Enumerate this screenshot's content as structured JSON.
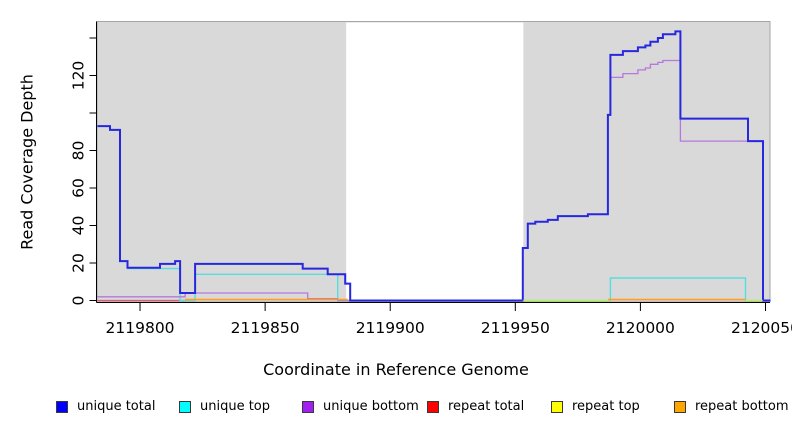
{
  "figure": {
    "xlabel": "Coordinate in Reference Genome",
    "ylabel": "Read Coverage Depth"
  },
  "axes": {
    "x_ticks": [
      {
        "value": 2119800,
        "label": "2119800"
      },
      {
        "value": 2119850,
        "label": "2119850"
      },
      {
        "value": 2119900,
        "label": "2119900"
      },
      {
        "value": 2119950,
        "label": "2119950"
      },
      {
        "value": 2120000,
        "label": "2120000"
      },
      {
        "value": 2120050,
        "label": "2120050"
      }
    ],
    "y_ticks": [
      {
        "value": 0,
        "label": "0"
      },
      {
        "value": 20,
        "label": "20"
      },
      {
        "value": 40,
        "label": "40"
      },
      {
        "value": 60,
        "label": "60"
      },
      {
        "value": 80,
        "label": "80"
      },
      {
        "value": 100,
        "label": ""
      },
      {
        "value": 120,
        "label": "120"
      },
      {
        "value": 140,
        "label": ""
      }
    ]
  },
  "legend": {
    "items": [
      {
        "label": "unique total",
        "color": "#0000ff"
      },
      {
        "label": "unique top",
        "color": "#00ffff"
      },
      {
        "label": "unique bottom",
        "color": "#a020f0"
      },
      {
        "label": "repeat total",
        "color": "#ff0000"
      },
      {
        "label": "repeat top",
        "color": "#ffff00"
      },
      {
        "label": "repeat bottom",
        "color": "#ffa500"
      }
    ]
  },
  "chart_data": {
    "type": "line",
    "subtype": "step",
    "title": "",
    "xlabel": "Coordinate in Reference Genome",
    "ylabel": "Read Coverage Depth",
    "xlim": [
      2119782.8,
      2120051.8
    ],
    "ylim": [
      -0.8,
      148.8
    ],
    "grid": false,
    "legend_position": "bottom",
    "background_bands": [
      {
        "from": 2119782.8,
        "to": 2120051.8,
        "color": "#d9d9d9",
        "border": "#a6a6a6"
      },
      {
        "from": 2119882.4,
        "to": 2119953.2,
        "color": "#ffffff",
        "border": "none"
      }
    ],
    "series": [
      {
        "name": "repeat total",
        "color": "#e85570",
        "width": 1.3,
        "opacity": 1,
        "segments": [
          [
            [
              2119783,
              0
            ],
            [
              2119818,
              0
            ]
          ]
        ]
      },
      {
        "name": "unique top",
        "color": "#55dde0",
        "width": 1.4,
        "opacity": 1,
        "segments": [
          [
            [
              2119783,
              93
            ],
            [
              2119788,
              91
            ],
            [
              2119792,
              21
            ],
            [
              2119795,
              17
            ],
            [
              2119816,
              0
            ],
            [
              2119822,
              14
            ],
            [
              2119879,
              0
            ],
            [
              2119988,
              12
            ],
            [
              2120042,
              0
            ],
            [
              2120052,
              0
            ]
          ]
        ]
      },
      {
        "name": "unique bottom",
        "color": "#b678dd",
        "width": 1.3,
        "opacity": 1,
        "segments": [
          [
            [
              2119783,
              2
            ],
            [
              2119818,
              4
            ],
            [
              2119867,
              1
            ],
            [
              2119879,
              0
            ],
            [
              2119953,
              28
            ],
            [
              2119955,
              41
            ],
            [
              2119958,
              42
            ],
            [
              2119963,
              43
            ],
            [
              2119967,
              45
            ],
            [
              2119979,
              46
            ],
            [
              2119987,
              99
            ],
            [
              2119988,
              119
            ],
            [
              2119993,
              121
            ],
            [
              2119999,
              123
            ],
            [
              2120002,
              124
            ],
            [
              2120004,
              126
            ],
            [
              2120007,
              127
            ],
            [
              2120009,
              128
            ],
            [
              2120016,
              85
            ],
            [
              2120049,
              0
            ],
            [
              2120052,
              0
            ]
          ]
        ]
      },
      {
        "name": "unique total",
        "color": "#2727e0",
        "width": 2,
        "opacity": 1,
        "segments": [
          [
            [
              2119783,
              93
            ],
            [
              2119788,
              91
            ],
            [
              2119792,
              21
            ],
            [
              2119795,
              17.5
            ],
            [
              2119808,
              19.5
            ],
            [
              2119814,
              21
            ],
            [
              2119816,
              4
            ],
            [
              2119822,
              19.5
            ],
            [
              2119865,
              17
            ],
            [
              2119875,
              14
            ],
            [
              2119882,
              9
            ],
            [
              2119884,
              0
            ],
            [
              2119953,
              28
            ],
            [
              2119955,
              41
            ],
            [
              2119958,
              42
            ],
            [
              2119963,
              43
            ],
            [
              2119967,
              45
            ],
            [
              2119979,
              46
            ],
            [
              2119987,
              99
            ],
            [
              2119988,
              131
            ],
            [
              2119993,
              133
            ],
            [
              2119999,
              135
            ],
            [
              2120002,
              136
            ],
            [
              2120004,
              138
            ],
            [
              2120007,
              140
            ],
            [
              2120009,
              142
            ],
            [
              2120014,
              143.5
            ],
            [
              2120016,
              97
            ],
            [
              2120043,
              85
            ],
            [
              2120049,
              0
            ],
            [
              2120052,
              0
            ]
          ]
        ]
      },
      {
        "name": "repeat top",
        "color": "#ffff00",
        "width": 1.5,
        "opacity": 0.6,
        "segments": [
          [
            [
              2119953,
              0
            ],
            [
              2119988,
              0
            ]
          ],
          [
            [
              2120042,
              0
            ],
            [
              2120049,
              0
            ]
          ]
        ]
      },
      {
        "name": "repeat bottom",
        "color": "#ff9d1e",
        "width": 1.6,
        "opacity": 1,
        "segments": [
          [
            [
              2119818,
              0.5
            ],
            [
              2119883,
              0.5
            ]
          ],
          [
            [
              2119987,
              0.5
            ],
            [
              2120042,
              0.5
            ]
          ]
        ]
      }
    ]
  }
}
